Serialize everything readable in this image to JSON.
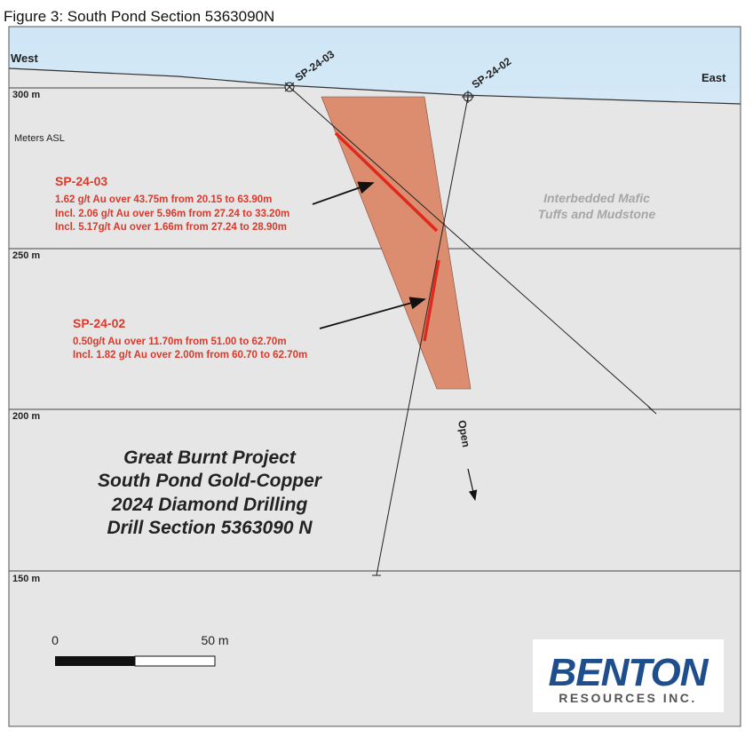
{
  "title": "Figure 3: South Pond Section 5363090N",
  "directions": {
    "west": "West",
    "east": "East"
  },
  "elevations": [
    "300 m",
    "250 m",
    "200 m",
    "150 m"
  ],
  "axis_label": "Meters ASL",
  "holes": [
    {
      "name": "SP-24-03",
      "lines": [
        "1.62 g/t Au over 43.75m from 20.15 to 63.90m",
        "Incl. 2.06 g/t Au over 5.96m from 27.24 to 33.20m",
        "Incl. 5.17g/t Au over 1.66m from 27.24 to 28.90m"
      ]
    },
    {
      "name": "SP-24-02",
      "lines": [
        "0.50g/t Au over 11.70m from 51.00 to 62.70m",
        "Incl. 1.82 g/t Au over 2.00m from 60.70 to 62.70m"
      ]
    }
  ],
  "unit_label": [
    "Interbedded Mafic",
    "Tuffs and Mudstone"
  ],
  "project": [
    "Great Burnt Project",
    "South Pond Gold-Copper",
    "2024 Diamond Drilling",
    "Drill Section 5363090 N"
  ],
  "open_label": "Open",
  "scale_bar": {
    "start": "0",
    "end": "50 m"
  },
  "logo": {
    "name": "BENTON",
    "tagline": "RESOURCES INC."
  }
}
